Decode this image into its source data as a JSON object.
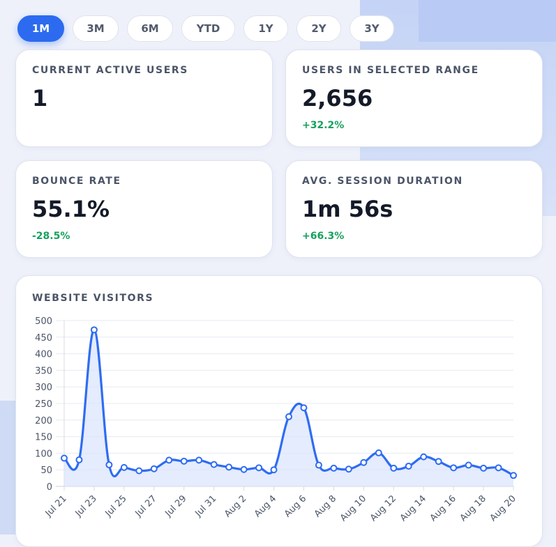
{
  "range_buttons": [
    {
      "label": "1M",
      "active": true
    },
    {
      "label": "3M",
      "active": false
    },
    {
      "label": "6M",
      "active": false
    },
    {
      "label": "YTD",
      "active": false
    },
    {
      "label": "1Y",
      "active": false
    },
    {
      "label": "2Y",
      "active": false
    },
    {
      "label": "3Y",
      "active": false
    }
  ],
  "stats": {
    "current_active": {
      "label": "CURRENT ACTIVE USERS",
      "value": "1"
    },
    "users_range": {
      "label": "USERS IN SELECTED RANGE",
      "value": "2,656",
      "delta": "+32.2%"
    },
    "bounce": {
      "label": "BOUNCE RATE",
      "value": "55.1%",
      "delta": "-28.5%"
    },
    "session": {
      "label": "AVG. SESSION DURATION",
      "value": "1m 56s",
      "delta": "+66.3%"
    }
  },
  "colors": {
    "accent": "#2c6bf0",
    "positive": "#17a05d",
    "line": "#2f6cf2",
    "area": "#dbe6fc"
  },
  "chart_data": {
    "type": "area",
    "title": "WEBSITE VISITORS",
    "ylim": [
      0,
      500
    ],
    "yticks": [
      0,
      50,
      100,
      150,
      200,
      250,
      300,
      350,
      400,
      450,
      500
    ],
    "grid": true,
    "x": [
      "Jul 21",
      "Jul 22",
      "Jul 23",
      "Jul 24",
      "Jul 25",
      "Jul 26",
      "Jul 27",
      "Jul 28",
      "Jul 29",
      "Jul 30",
      "Jul 31",
      "Aug 1",
      "Aug 2",
      "Aug 3",
      "Aug 4",
      "Aug 5",
      "Aug 6",
      "Aug 7",
      "Aug 8",
      "Aug 9",
      "Aug 10",
      "Aug 11",
      "Aug 12",
      "Aug 13",
      "Aug 14",
      "Aug 15",
      "Aug 16",
      "Aug 17",
      "Aug 18",
      "Aug 19",
      "Aug 20"
    ],
    "xtick_labels": [
      "Jul 21",
      "Jul 23",
      "Jul 25",
      "Jul 27",
      "Jul 29",
      "Jul 31",
      "Aug 2",
      "Aug 4",
      "Aug 6",
      "Aug 8",
      "Aug 10",
      "Aug 12",
      "Aug 14",
      "Aug 16",
      "Aug 18",
      "Aug 20"
    ],
    "series": [
      {
        "values": [
          85,
          80,
          472,
          65,
          57,
          47,
          53,
          79,
          76,
          79,
          66,
          58,
          51,
          56,
          50,
          210,
          237,
          64,
          55,
          52,
          72,
          101,
          55,
          61,
          89,
          75,
          56,
          64,
          55,
          56,
          33
        ]
      }
    ]
  }
}
